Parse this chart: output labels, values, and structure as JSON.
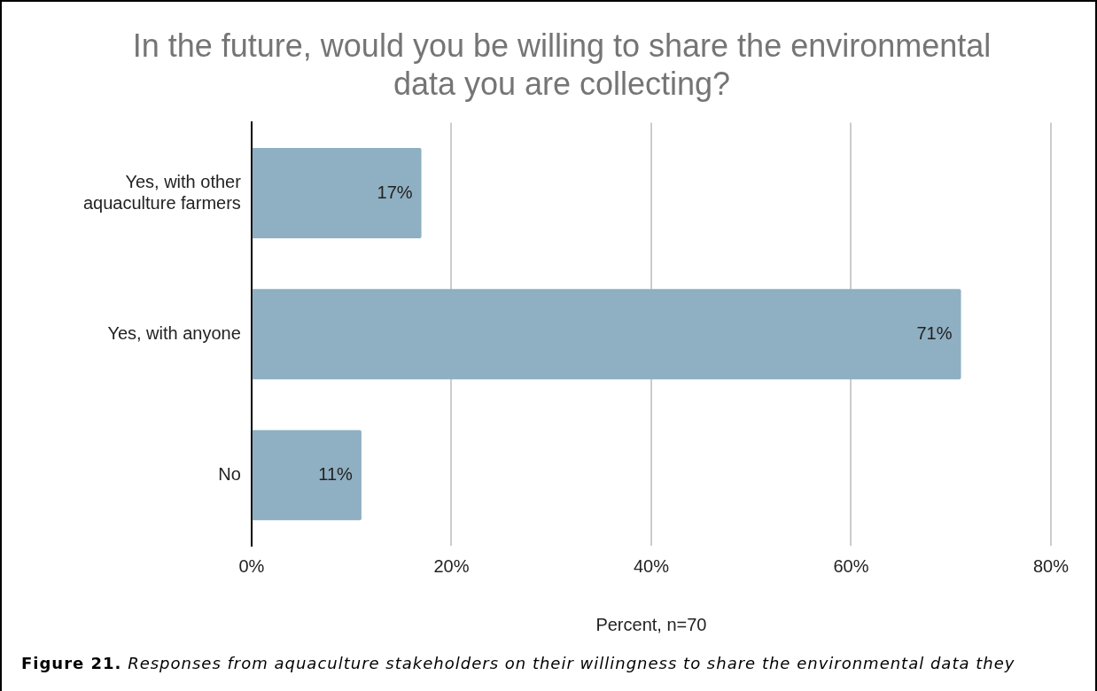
{
  "chart_data": {
    "type": "bar",
    "orientation": "horizontal",
    "title": "In the future, would you be willing to share the environmental data you are collecting?",
    "categories": [
      "Yes, with other aquaculture farmers",
      "Yes, with anyone",
      "No"
    ],
    "values": [
      17,
      71,
      11
    ],
    "color": "#8fafc2",
    "value_labels": [
      "17%",
      "71%",
      "11%"
    ],
    "xlabel": "Percent, n=70",
    "xlim": [
      0,
      80
    ],
    "xticks": [
      {
        "value": 0,
        "label": "0%"
      },
      {
        "value": 20,
        "label": "20%"
      },
      {
        "value": 40,
        "label": "40%"
      },
      {
        "value": 60,
        "label": "60%"
      },
      {
        "value": 80,
        "label": "80%"
      }
    ],
    "grid": "x",
    "legend": false,
    "annotations": [
      "Figure 21. Responses from aquaculture stakeholders on their willingness to share the environmental data they"
    ]
  }
}
